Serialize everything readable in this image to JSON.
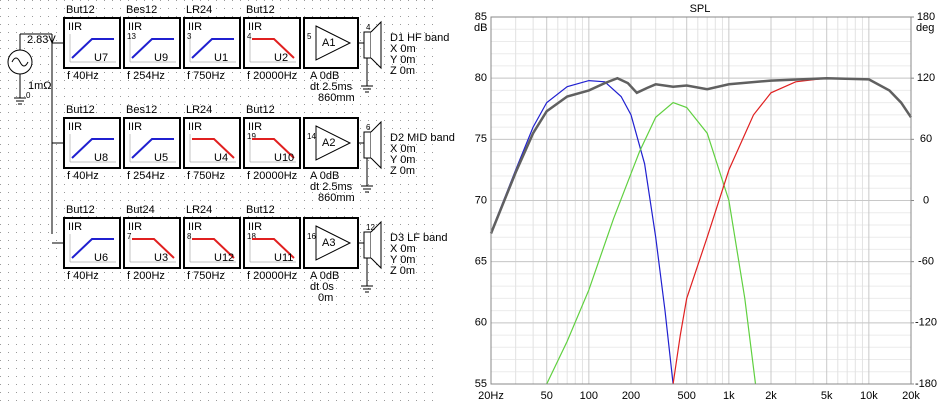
{
  "source": {
    "voltage": "2.83V",
    "resistance": "1mΩ",
    "pin": "0"
  },
  "rows": [
    {
      "filters": [
        {
          "type": "But12",
          "kind": "IIR",
          "name": "U7",
          "freq": "f  40Hz"
        },
        {
          "type": "Bes12",
          "kind": "IIR",
          "name": "U9",
          "freq": "f  254Hz",
          "pin": "13"
        },
        {
          "type": "LR24",
          "kind": "IIR",
          "name": "U1",
          "freq": "f  750Hz",
          "pin": "3"
        },
        {
          "type": "But12",
          "kind": "IIR",
          "name": "U2",
          "freq": "f  20000Hz",
          "pin": "4"
        }
      ],
      "amp": {
        "name": "A1",
        "pin": "5",
        "gain": "A  0dB",
        "delay": "dt 2.5ms",
        "distance": "860mm"
      },
      "driver": {
        "name": "D1 HF band",
        "pin": "4",
        "x": "X 0m",
        "y": "Y 0m",
        "z": "Z 0m"
      }
    },
    {
      "filters": [
        {
          "type": "But12",
          "kind": "IIR",
          "name": "U8",
          "freq": "f  40Hz"
        },
        {
          "type": "Bes12",
          "kind": "IIR",
          "name": "U5",
          "freq": "f  254Hz"
        },
        {
          "type": "LR24",
          "kind": "IIR",
          "name": "U4",
          "freq": "f  750Hz"
        },
        {
          "type": "But12",
          "kind": "IIR",
          "name": "U10",
          "freq": "f  20000Hz",
          "pin": "19"
        }
      ],
      "amp": {
        "name": "A2",
        "pin": "14",
        "gain": "A  0dB",
        "delay": "dt 2.5ms",
        "distance": "860mm"
      },
      "driver": {
        "name": "D2 MID band",
        "pin": "6",
        "x": "X 0m",
        "y": "Y 0m",
        "z": "Z 0m"
      }
    },
    {
      "filters": [
        {
          "type": "But12",
          "kind": "IIR",
          "name": "U6",
          "freq": "f  40Hz"
        },
        {
          "type": "But24",
          "kind": "IIR",
          "name": "U3",
          "freq": "f  200Hz",
          "pin": "7"
        },
        {
          "type": "LR24",
          "kind": "IIR",
          "name": "U12",
          "freq": "f  750Hz",
          "pin": "8"
        },
        {
          "type": "But12",
          "kind": "IIR",
          "name": "U11",
          "freq": "f  20000Hz",
          "pin": "18"
        }
      ],
      "amp": {
        "name": "A3",
        "pin": "16",
        "gain": "A  0dB",
        "delay": "dt 0s",
        "distance": "0m"
      },
      "driver": {
        "name": "D3 LF band",
        "pin": "12",
        "x": "X 0m",
        "y": "Y 0m",
        "z": "Z 0m"
      }
    }
  ],
  "chart_data": {
    "type": "line",
    "title": "SPL",
    "y_label": "dB",
    "y2_label": "deg",
    "log_x": true,
    "grid": true,
    "xlim": [
      20,
      20000
    ],
    "ylim": [
      55,
      85
    ],
    "y2lim": [
      -180,
      180
    ],
    "xticks": [
      {
        "value": 20,
        "label": "20Hz"
      },
      50,
      100,
      200,
      500,
      {
        "value": 1000,
        "label": "1k"
      },
      {
        "value": 2000,
        "label": "2k"
      },
      {
        "value": 5000,
        "label": "5k"
      },
      {
        "value": 10000,
        "label": "10k"
      },
      {
        "value": 20000,
        "label": "20k"
      }
    ],
    "xminor": [
      30,
      40,
      60,
      70,
      80,
      90,
      300,
      400,
      600,
      700,
      800,
      900,
      3000,
      4000,
      6000,
      7000,
      8000,
      9000
    ],
    "yticks": [
      55,
      60,
      65,
      70,
      75,
      80,
      85
    ],
    "yminor_step": 1,
    "y2ticks": [
      -180,
      -120,
      -60,
      0,
      60,
      120,
      180
    ],
    "series": [
      {
        "color": "#2020d0",
        "x": [
          20,
          30,
          40,
          50,
          70,
          100,
          130,
          170,
          200,
          250,
          300,
          350,
          400
        ],
        "values": [
          67.4,
          72.5,
          76,
          78,
          79.3,
          79.8,
          79.7,
          78.5,
          77,
          73,
          67,
          61,
          55
        ]
      },
      {
        "color": "#60d040",
        "x": [
          50,
          70,
          100,
          150,
          230,
          300,
          400,
          500,
          700,
          1000,
          1300,
          1550
        ],
        "values": [
          55,
          58.5,
          62.7,
          68.5,
          74,
          76.8,
          78,
          77.6,
          75.5,
          70,
          62,
          55
        ]
      },
      {
        "color": "#e02020",
        "x": [
          400,
          450,
          500,
          700,
          1000,
          1500,
          2000,
          3000,
          5000,
          10000,
          14000,
          17000,
          20000
        ],
        "values": [
          55,
          59,
          62,
          67,
          72.5,
          77,
          78.8,
          79.7,
          80,
          79.9,
          79,
          78,
          76.8
        ]
      },
      {
        "color": "#606060",
        "x": [
          20,
          30,
          40,
          50,
          70,
          100,
          130,
          160,
          190,
          220,
          260,
          300,
          400,
          500,
          700,
          1000,
          2000,
          5000,
          10000,
          14000,
          17000,
          20000
        ],
        "values": [
          67.3,
          72.3,
          75.5,
          77.3,
          78.5,
          79,
          79.6,
          80,
          79.6,
          78.8,
          79.2,
          79.5,
          79.3,
          79.4,
          79.1,
          79.5,
          79.8,
          80,
          79.9,
          79,
          78,
          76.8
        ]
      }
    ]
  }
}
